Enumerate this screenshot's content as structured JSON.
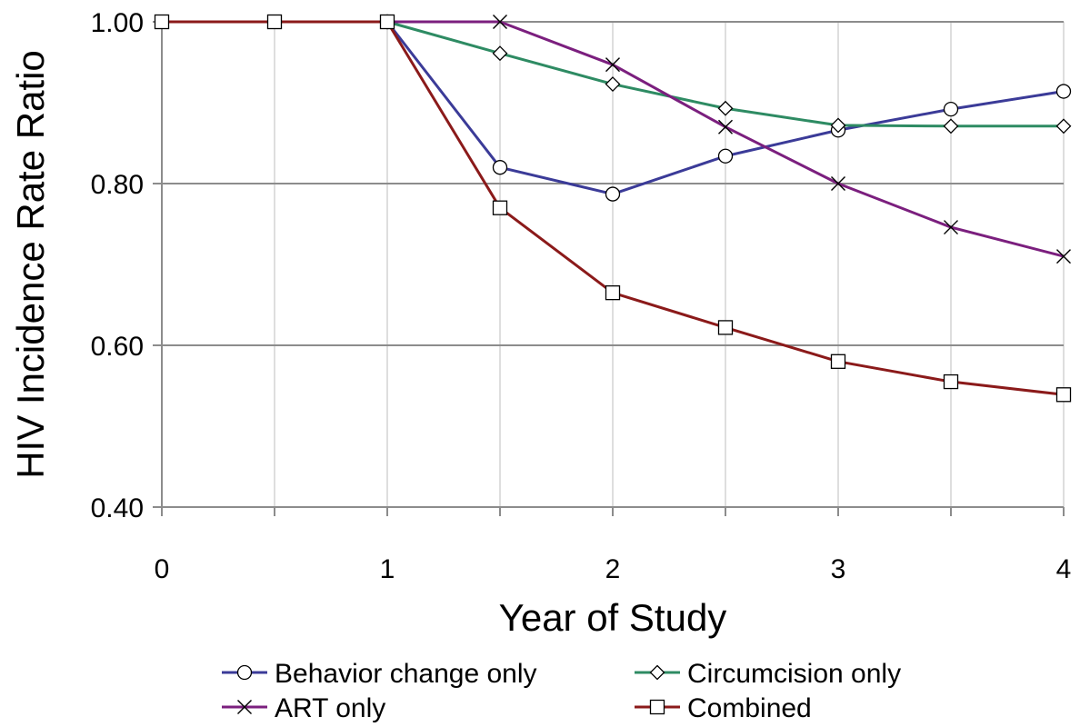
{
  "chart_data": {
    "type": "line",
    "title": "",
    "xlabel": "Year of Study",
    "ylabel": "HIV Incidence Rate Ratio",
    "xlim": [
      0,
      4
    ],
    "ylim": [
      0.4,
      1.0
    ],
    "x_ticks": [
      "0",
      "1",
      "2",
      "3",
      "4"
    ],
    "x_tick_values": [
      0,
      1,
      2,
      3,
      4
    ],
    "y_ticks": [
      "0.40",
      "0.60",
      "0.80",
      "1.00"
    ],
    "y_tick_values": [
      0.4,
      0.6,
      0.8,
      1.0
    ],
    "x_gridlines": [
      0,
      0.5,
      1,
      1.5,
      2,
      2.5,
      3,
      3.5,
      4
    ],
    "grid": true,
    "legend_position": "bottom",
    "series": [
      {
        "name": "Behavior change only",
        "color": "#3b3b98",
        "marker": "circle",
        "x": [
          1,
          1.5,
          2,
          2.5,
          3,
          3.5,
          4
        ],
        "y": [
          1.0,
          0.82,
          0.787,
          0.834,
          0.866,
          0.892,
          0.914
        ]
      },
      {
        "name": "Circumcision only",
        "color": "#2e8b63",
        "marker": "diamond",
        "x": [
          1,
          1.5,
          2,
          2.5,
          3,
          3.5,
          4
        ],
        "y": [
          1.0,
          0.961,
          0.923,
          0.893,
          0.872,
          0.871,
          0.871
        ]
      },
      {
        "name": "ART only",
        "color": "#7b1f7e",
        "marker": "x",
        "x": [
          1,
          1.5,
          2,
          2.5,
          3,
          3.5,
          4
        ],
        "y": [
          1.0,
          1.0,
          0.947,
          0.87,
          0.8,
          0.746,
          0.71
        ]
      },
      {
        "name": "Combined",
        "color": "#8b1a1a",
        "marker": "square",
        "x": [
          0,
          0.5,
          1,
          1.5,
          2,
          2.5,
          3,
          3.5,
          4
        ],
        "y": [
          1.0,
          1.0,
          1.0,
          0.77,
          0.665,
          0.622,
          0.58,
          0.555,
          0.539
        ]
      }
    ]
  }
}
